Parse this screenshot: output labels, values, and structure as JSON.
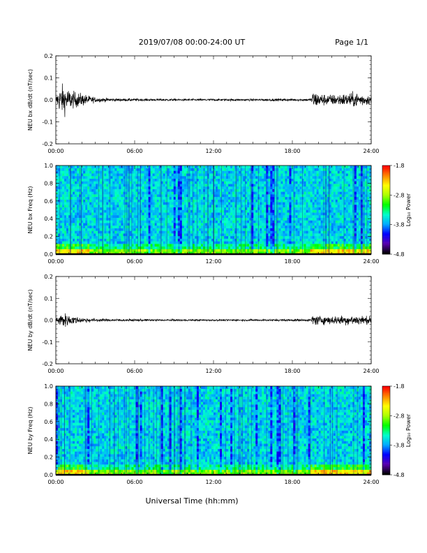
{
  "header": {
    "title": "2019/07/08  00:00-24:00 UT",
    "page": "Page 1/1"
  },
  "xaxis_title": "Universal Time (hh:mm)",
  "chart_data": [
    {
      "type": "line",
      "ylabel": "NEU bx dB/dt (nT/sec)",
      "xlim": [
        "00:00",
        "24:00"
      ],
      "ylim": [
        -0.2,
        0.2
      ],
      "x_ticks": [
        "00:00",
        "06:00",
        "12:00",
        "18:00",
        "24:00"
      ],
      "y_ticks": [
        "-0.2",
        "-0.1",
        "0.0",
        "0.1",
        "0.2"
      ],
      "series_color": "#000000",
      "envelope": {
        "hours": [
          0,
          0.2,
          0.5,
          0.8,
          1.0,
          1.3,
          1.6,
          2.0,
          2.5,
          3,
          4,
          6,
          9,
          12,
          15,
          18,
          19.4,
          19.6,
          20,
          21,
          22,
          23,
          24
        ],
        "amplitude": [
          0.015,
          0.05,
          0.07,
          0.06,
          0.05,
          0.04,
          0.035,
          0.03,
          0.02,
          0.012,
          0.008,
          0.006,
          0.005,
          0.005,
          0.005,
          0.006,
          0.006,
          0.045,
          0.03,
          0.025,
          0.03,
          0.035,
          0.02
        ]
      }
    },
    {
      "type": "heatmap",
      "ylabel": "NEU bx Freq (Hz)",
      "xlim": [
        "00:00",
        "24:00"
      ],
      "ylim": [
        0.0,
        1.0
      ],
      "x_ticks": [
        "00:00",
        "06:00",
        "12:00",
        "18:00",
        "24:00"
      ],
      "y_ticks": [
        "0.0",
        "0.2",
        "0.4",
        "0.6",
        "0.8",
        "1.0"
      ],
      "colorbar": {
        "label": "Log₁₀ Power",
        "range": [
          -4.8,
          -1.8
        ],
        "ticks": [
          "-1.8",
          "-2.8",
          "-3.8",
          "-4.8"
        ]
      },
      "colormap": [
        "#000000",
        "#5a00b0",
        "#0000ff",
        "#00aaff",
        "#00ffcc",
        "#00ff00",
        "#aaff00",
        "#ffff00",
        "#ff8800",
        "#ff0000"
      ]
    },
    {
      "type": "line",
      "ylabel": "NEU by dB/dt (nT/sec)",
      "xlim": [
        "00:00",
        "24:00"
      ],
      "ylim": [
        -0.2,
        0.2
      ],
      "x_ticks": [
        "00:00",
        "06:00",
        "12:00",
        "18:00",
        "24:00"
      ],
      "y_ticks": [
        "-0.2",
        "-0.1",
        "0.0",
        "0.1",
        "0.2"
      ],
      "series_color": "#000000",
      "envelope": {
        "hours": [
          0,
          0.3,
          0.6,
          1.0,
          1.5,
          2,
          3,
          4,
          6,
          9,
          12,
          15,
          18,
          19.4,
          19.6,
          20,
          21,
          22,
          23,
          24
        ],
        "amplitude": [
          0.012,
          0.03,
          0.035,
          0.025,
          0.018,
          0.012,
          0.008,
          0.006,
          0.005,
          0.004,
          0.004,
          0.004,
          0.005,
          0.005,
          0.03,
          0.02,
          0.02,
          0.022,
          0.025,
          0.015
        ]
      }
    },
    {
      "type": "heatmap",
      "ylabel": "NEU by Freq (Hz)",
      "xlim": [
        "00:00",
        "24:00"
      ],
      "ylim": [
        0.0,
        1.0
      ],
      "x_ticks": [
        "00:00",
        "06:00",
        "12:00",
        "18:00",
        "24:00"
      ],
      "y_ticks": [
        "0.0",
        "0.2",
        "0.4",
        "0.6",
        "0.8",
        "1.0"
      ],
      "colorbar": {
        "label": "Log₁₀ Power",
        "range": [
          -4.8,
          -1.8
        ],
        "ticks": [
          "-1.8",
          "-2.8",
          "-3.8",
          "-4.8"
        ]
      },
      "colormap": [
        "#000000",
        "#5a00b0",
        "#0000ff",
        "#00aaff",
        "#00ffcc",
        "#00ff00",
        "#aaff00",
        "#ffff00",
        "#ff8800",
        "#ff0000"
      ]
    }
  ]
}
